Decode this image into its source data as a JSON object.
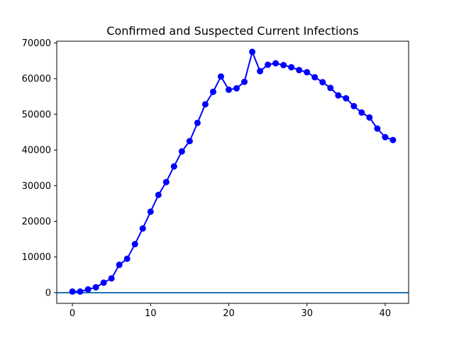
{
  "chart_data": {
    "type": "line",
    "title": "Confirmed and Suspected Current Infections",
    "xlabel": "",
    "ylabel": "",
    "xlim": [
      -2,
      43
    ],
    "ylim": [
      -3000,
      70500
    ],
    "x_ticks": [
      0,
      10,
      20,
      30,
      40
    ],
    "y_ticks": [
      0,
      10000,
      20000,
      30000,
      40000,
      50000,
      60000,
      70000
    ],
    "grid": false,
    "legend": "none",
    "reference_line": {
      "y": 0,
      "color": "#1f77b4"
    },
    "series": [
      {
        "color": "#0000ff",
        "marker": "circle",
        "x": [
          0,
          1,
          2,
          3,
          4,
          5,
          6,
          7,
          8,
          9,
          10,
          11,
          12,
          13,
          14,
          15,
          16,
          17,
          18,
          19,
          20,
          21,
          22,
          23,
          24,
          25,
          26,
          27,
          28,
          29,
          30,
          31,
          32,
          33,
          34,
          35,
          36,
          37,
          38,
          39,
          40,
          41
        ],
        "values": [
          300,
          300,
          900,
          1500,
          2800,
          4000,
          7800,
          9500,
          13600,
          18000,
          22700,
          27400,
          31000,
          35400,
          39600,
          42500,
          47600,
          52800,
          56300,
          60600,
          56900,
          57300,
          59100,
          67500,
          62100,
          63900,
          64300,
          63800,
          63200,
          62400,
          61800,
          60400,
          59000,
          57400,
          55300,
          54500,
          52300,
          50500,
          49100,
          46000,
          43600,
          42800
        ]
      }
    ]
  }
}
